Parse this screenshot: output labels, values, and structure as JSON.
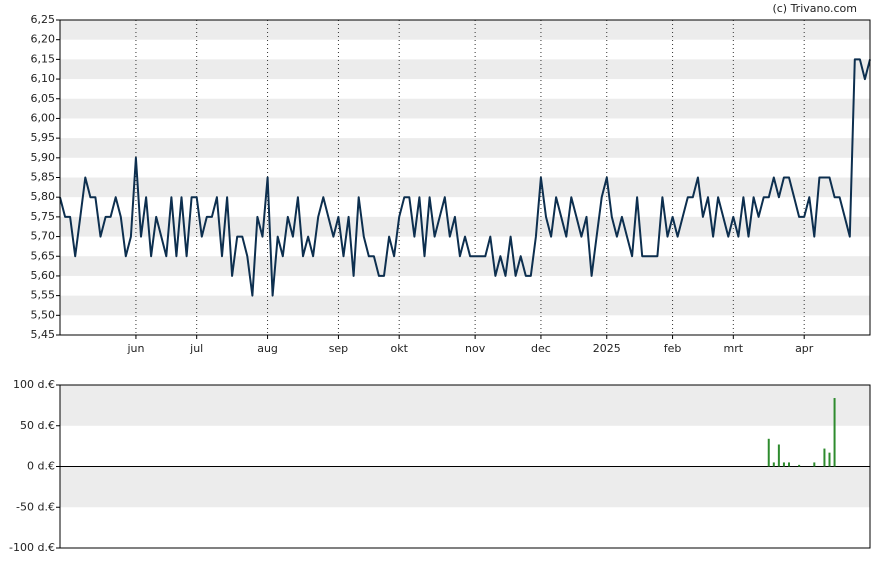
{
  "credit": "(c) Trivano.com",
  "chart_data": [
    {
      "type": "line",
      "series": [
        {
          "color": "#0d2f4f",
          "values": [
            5.8,
            5.75,
            5.75,
            5.65,
            5.75,
            5.85,
            5.8,
            5.8,
            5.7,
            5.75,
            5.75,
            5.8,
            5.75,
            5.65,
            5.7,
            5.9,
            5.7,
            5.8,
            5.65,
            5.75,
            5.7,
            5.65,
            5.8,
            5.65,
            5.8,
            5.65,
            5.8,
            5.8,
            5.7,
            5.75,
            5.75,
            5.8,
            5.65,
            5.8,
            5.6,
            5.7,
            5.7,
            5.65,
            5.55,
            5.75,
            5.7,
            5.85,
            5.55,
            5.7,
            5.65,
            5.75,
            5.7,
            5.8,
            5.65,
            5.7,
            5.65,
            5.75,
            5.8,
            5.75,
            5.7,
            5.75,
            5.65,
            5.75,
            5.6,
            5.8,
            5.7,
            5.65,
            5.65,
            5.6,
            5.6,
            5.7,
            5.65,
            5.75,
            5.8,
            5.8,
            5.7,
            5.8,
            5.65,
            5.8,
            5.7,
            5.75,
            5.8,
            5.7,
            5.75,
            5.65,
            5.7,
            5.65,
            5.65,
            5.65,
            5.65,
            5.7,
            5.6,
            5.65,
            5.6,
            5.7,
            5.6,
            5.65,
            5.6,
            5.6,
            5.7,
            5.85,
            5.75,
            5.7,
            5.8,
            5.75,
            5.7,
            5.8,
            5.75,
            5.7,
            5.75,
            5.6,
            5.7,
            5.8,
            5.85,
            5.75,
            5.7,
            5.75,
            5.7,
            5.65,
            5.8,
            5.65,
            5.65,
            5.65,
            5.65,
            5.8,
            5.7,
            5.75,
            5.7,
            5.75,
            5.8,
            5.8,
            5.85,
            5.75,
            5.8,
            5.7,
            5.8,
            5.75,
            5.7,
            5.75,
            5.7,
            5.8,
            5.7,
            5.8,
            5.75,
            5.8,
            5.8,
            5.85,
            5.8,
            5.85,
            5.85,
            5.8,
            5.75,
            5.75,
            5.8,
            5.7,
            5.85,
            5.85,
            5.85,
            5.8,
            5.8,
            5.75,
            5.7,
            6.15,
            6.15,
            6.1,
            6.15
          ]
        }
      ],
      "xlim": [
        0,
        160
      ],
      "xticks": [
        {
          "value": 15,
          "label": "jun"
        },
        {
          "value": 27,
          "label": "jul"
        },
        {
          "value": 41,
          "label": "aug"
        },
        {
          "value": 55,
          "label": "sep"
        },
        {
          "value": 67,
          "label": "okt"
        },
        {
          "value": 82,
          "label": "nov"
        },
        {
          "value": 95,
          "label": "dec"
        },
        {
          "value": 108,
          "label": "2025"
        },
        {
          "value": 121,
          "label": "feb"
        },
        {
          "value": 133,
          "label": "mrt"
        },
        {
          "value": 147,
          "label": "apr"
        }
      ],
      "ylim": [
        5.45,
        6.25
      ],
      "yticks": [
        {
          "value": 5.45,
          "label": "5,45"
        },
        {
          "value": 5.5,
          "label": "5,50"
        },
        {
          "value": 5.55,
          "label": "5,55"
        },
        {
          "value": 5.6,
          "label": "5,60"
        },
        {
          "value": 5.65,
          "label": "5,65"
        },
        {
          "value": 5.7,
          "label": "5,70"
        },
        {
          "value": 5.75,
          "label": "5,75"
        },
        {
          "value": 5.8,
          "label": "5,80"
        },
        {
          "value": 5.85,
          "label": "5,85"
        },
        {
          "value": 5.9,
          "label": "5,90"
        },
        {
          "value": 5.95,
          "label": "5,95"
        },
        {
          "value": 6.0,
          "label": "6,00"
        },
        {
          "value": 6.05,
          "label": "6,05"
        },
        {
          "value": 6.1,
          "label": "6,10"
        },
        {
          "value": 6.15,
          "label": "6,15"
        },
        {
          "value": 6.2,
          "label": "6,20"
        },
        {
          "value": 6.25,
          "label": "6,25"
        }
      ],
      "grid": true
    },
    {
      "type": "bar",
      "color": "#2e8b2e",
      "x": [
        140,
        141,
        142,
        143,
        144,
        146,
        149,
        151,
        152,
        153
      ],
      "values": [
        34,
        5,
        27,
        5,
        5,
        2,
        5,
        22,
        17,
        84
      ],
      "xlim": [
        0,
        160
      ],
      "ylim": [
        -100,
        100
      ],
      "yticks": [
        {
          "value": -100,
          "label": "-100 d.€"
        },
        {
          "value": -50,
          "label": "-50 d.€"
        },
        {
          "value": 0,
          "label": "0 d.€"
        },
        {
          "value": 50,
          "label": "50 d.€"
        },
        {
          "value": 100,
          "label": "100 d.€"
        }
      ],
      "grid": true
    }
  ]
}
